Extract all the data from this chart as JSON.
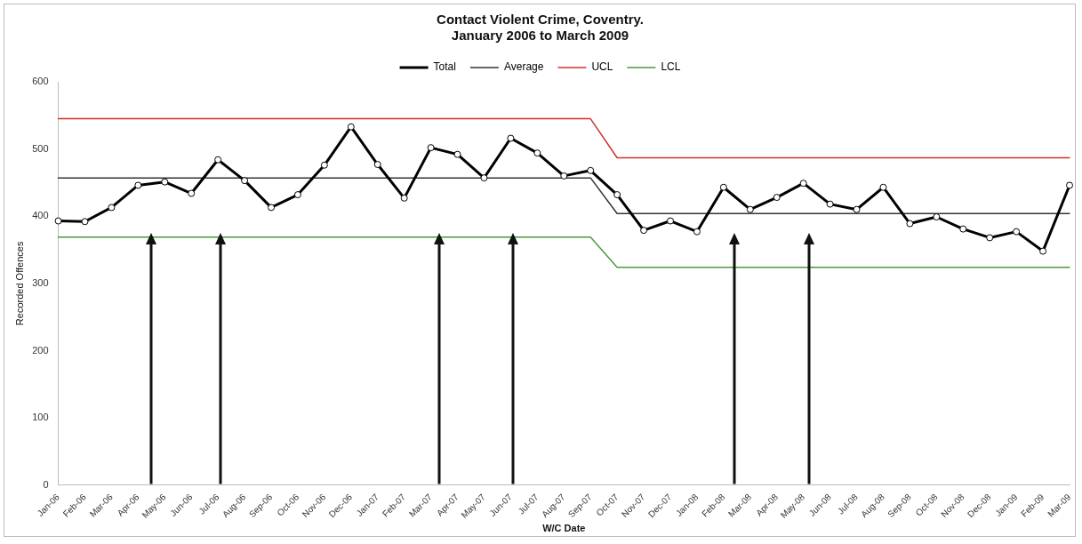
{
  "chart_data": {
    "type": "line",
    "title": "Contact Violent Crime, Coventry.\nJanuary 2006 to March 2009",
    "xlabel": "W/C Date",
    "ylabel": "Recorded Offences",
    "categories": [
      "Jan-06",
      "Feb-06",
      "Mar-06",
      "Apr-06",
      "May-06",
      "Jun-06",
      "Jul-06",
      "Aug-06",
      "Sep-06",
      "Oct-06",
      "Nov-06",
      "Dec-06",
      "Jan-07",
      "Feb-07",
      "Mar-07",
      "Apr-07",
      "May-07",
      "Jun-07",
      "Jul-07",
      "Aug-07",
      "Sep-07",
      "Oct-07",
      "Nov-07",
      "Dec-07",
      "Jan-08",
      "Feb-08",
      "Mar-08",
      "Apr-08",
      "May-08",
      "Jun-08",
      "Jul-08",
      "Aug-08",
      "Sep-08",
      "Oct-08",
      "Nov-08",
      "Dec-08",
      "Jan-09",
      "Feb-09",
      "Mar-09"
    ],
    "series": [
      {
        "name": "Total",
        "color": "#000000",
        "marker": "circle",
        "values": [
          393,
          392,
          413,
          446,
          451,
          434,
          484,
          453,
          413,
          432,
          476,
          533,
          477,
          427,
          502,
          492,
          457,
          516,
          494,
          460,
          468,
          432,
          379,
          393,
          377,
          443,
          410,
          428,
          449,
          418,
          410,
          443,
          389,
          399,
          381,
          368,
          377,
          348,
          446
        ]
      },
      {
        "name": "Average",
        "color": "#333333",
        "marker": "none",
        "values": [
          457,
          457,
          457,
          457,
          457,
          457,
          457,
          457,
          457,
          457,
          457,
          457,
          457,
          457,
          457,
          457,
          457,
          457,
          457,
          457,
          457,
          404,
          404,
          404,
          404,
          404,
          404,
          404,
          404,
          404,
          404,
          404,
          404,
          404,
          404,
          404,
          404,
          404,
          404
        ]
      },
      {
        "name": "UCL",
        "color": "#d03030",
        "marker": "none",
        "values": [
          545,
          545,
          545,
          545,
          545,
          545,
          545,
          545,
          545,
          545,
          545,
          545,
          545,
          545,
          545,
          545,
          545,
          545,
          545,
          545,
          545,
          487,
          487,
          487,
          487,
          487,
          487,
          487,
          487,
          487,
          487,
          487,
          487,
          487,
          487,
          487,
          487,
          487,
          487
        ]
      },
      {
        "name": "LCL",
        "color": "#4a9a3a",
        "marker": "none",
        "values": [
          369,
          369,
          369,
          369,
          369,
          369,
          369,
          369,
          369,
          369,
          369,
          369,
          369,
          369,
          369,
          369,
          369,
          369,
          369,
          369,
          369,
          324,
          324,
          324,
          324,
          324,
          324,
          324,
          324,
          324,
          324,
          324,
          324,
          324,
          324,
          324,
          324,
          324,
          324
        ]
      }
    ],
    "ylim": [
      0,
      600
    ],
    "yticks": [
      0,
      100,
      200,
      300,
      400,
      500,
      600
    ],
    "grid": false,
    "legend": "top"
  }
}
